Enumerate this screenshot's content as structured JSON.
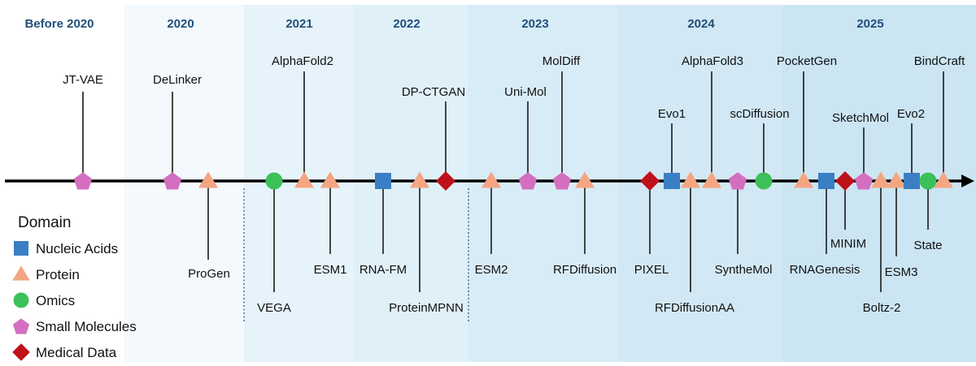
{
  "colors": {
    "nucleic_acids": "#3a7fc4",
    "protein": "#f4a582",
    "omics": "#3cc05a",
    "small_molecules": "#d46fc0",
    "medical_data": "#c0101a",
    "year_text": "#1f4e79",
    "axis": "#000000"
  },
  "periods": [
    "Before 2020",
    "2020",
    "2021",
    "2022",
    "2023",
    "2024",
    "2025"
  ],
  "legend": {
    "title": "Domain",
    "items": [
      {
        "label": "Nucleic Acids",
        "shape": "square",
        "color": "#3a7fc4"
      },
      {
        "label": "Protein",
        "shape": "triangle",
        "color": "#f4a582"
      },
      {
        "label": "Omics",
        "shape": "circle",
        "color": "#3cc05a"
      },
      {
        "label": "Small Molecules",
        "shape": "pentagon",
        "color": "#d46fc0"
      },
      {
        "label": "Medical Data",
        "shape": "diamond",
        "color": "#c0101a"
      }
    ]
  },
  "models": [
    {
      "name": "JT-VAE",
      "domain": "small_molecules"
    },
    {
      "name": "DeLinker",
      "domain": "small_molecules"
    },
    {
      "name": "ProGen",
      "domain": "protein"
    },
    {
      "name": "VEGA",
      "domain": "omics"
    },
    {
      "name": "AlphaFold2",
      "domain": "protein"
    },
    {
      "name": "ESM1",
      "domain": "protein"
    },
    {
      "name": "RNA-FM",
      "domain": "nucleic_acids"
    },
    {
      "name": "ProteinMPNN",
      "domain": "protein"
    },
    {
      "name": "DP-CTGAN",
      "domain": "medical_data"
    },
    {
      "name": "ESM2",
      "domain": "protein"
    },
    {
      "name": "Uni-Mol",
      "domain": "small_molecules"
    },
    {
      "name": "MolDiff",
      "domain": "small_molecules"
    },
    {
      "name": "RFDiffusion",
      "domain": "protein"
    },
    {
      "name": "PIXEL",
      "domain": "medical_data"
    },
    {
      "name": "Evo1",
      "domain": "nucleic_acids"
    },
    {
      "name": "RFDiffusionAA",
      "domain": "protein"
    },
    {
      "name": "AlphaFold3",
      "domain": "protein"
    },
    {
      "name": "SyntheMol",
      "domain": "small_molecules"
    },
    {
      "name": "scDiffusion",
      "domain": "omics"
    },
    {
      "name": "PocketGen",
      "domain": "protein"
    },
    {
      "name": "RNAGenesis",
      "domain": "nucleic_acids"
    },
    {
      "name": "MINIM",
      "domain": "medical_data"
    },
    {
      "name": "SketchMol",
      "domain": "small_molecules"
    },
    {
      "name": "Boltz-2",
      "domain": "protein"
    },
    {
      "name": "ESM3",
      "domain": "protein"
    },
    {
      "name": "Evo2",
      "domain": "nucleic_acids"
    },
    {
      "name": "State",
      "domain": "omics"
    },
    {
      "name": "BindCraft",
      "domain": "protein"
    }
  ]
}
